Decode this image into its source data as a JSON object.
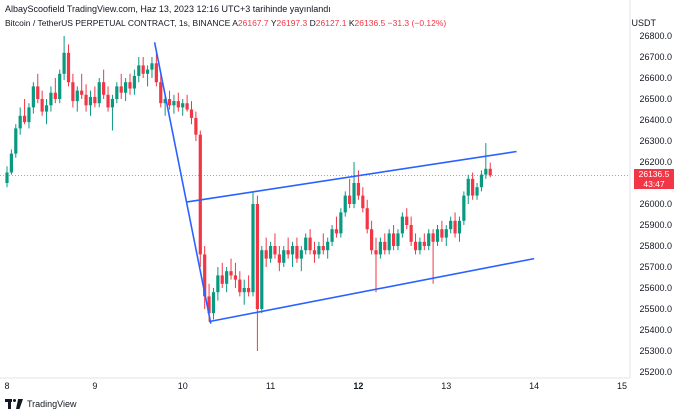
{
  "header": {
    "publisher": "AlbayScoofield TradingView.com, Haz 13, 2023 12:16 UTC+3 tarihinde yayınlandı"
  },
  "symbol": {
    "title": "Bitcoin / TetherUS PERPETUAL CONTRACT, 1s, BINANCE",
    "open_label": "A",
    "open": "26167.7",
    "high_label": "Y",
    "high": "26197.3",
    "low_label": "D",
    "low": "26127.1",
    "close_label": "K",
    "close": "26136.5",
    "change": "−31.3 (−0.12%)"
  },
  "axis": {
    "currency": "USDT",
    "y_ticks": [
      "26800.0",
      "26700.0",
      "26600.0",
      "26500.0",
      "26400.0",
      "26300.0",
      "26200.0",
      "26100.0",
      "26000.0",
      "25900.0",
      "25800.0",
      "25700.0",
      "25600.0",
      "25500.0",
      "25400.0",
      "25300.0",
      "25200.0"
    ],
    "x_ticks": [
      "8",
      "9",
      "10",
      "11",
      "12",
      "13",
      "14",
      "15"
    ]
  },
  "price_label": {
    "price": "26136.5",
    "countdown": "43:47"
  },
  "footer": {
    "brand": "TradingView"
  },
  "colors": {
    "up": "#089981",
    "down": "#f23645",
    "trendline": "#2962ff"
  },
  "chart_data": {
    "type": "candlestick",
    "title": "",
    "ylim": [
      25150,
      26850
    ],
    "x_range": [
      8,
      15
    ],
    "last_price": 26136.5,
    "trendlines": [
      {
        "from": [
          9.68,
          26770
        ],
        "to": [
          10.32,
          25430
        ]
      },
      {
        "from": [
          10.05,
          26010
        ],
        "to": [
          13.8,
          26250
        ]
      },
      {
        "from": [
          10.3,
          25440
        ],
        "to": [
          14.0,
          25740
        ]
      }
    ],
    "candles": [
      {
        "x": 8.0,
        "o": 26100,
        "h": 26180,
        "l": 26080,
        "c": 26150
      },
      {
        "x": 8.05,
        "o": 26150,
        "h": 26260,
        "l": 26140,
        "c": 26240
      },
      {
        "x": 8.1,
        "o": 26240,
        "h": 26380,
        "l": 26220,
        "c": 26360
      },
      {
        "x": 8.15,
        "o": 26360,
        "h": 26460,
        "l": 26330,
        "c": 26420
      },
      {
        "x": 8.2,
        "o": 26420,
        "h": 26500,
        "l": 26380,
        "c": 26390
      },
      {
        "x": 8.25,
        "o": 26390,
        "h": 26480,
        "l": 26360,
        "c": 26460
      },
      {
        "x": 8.3,
        "o": 26460,
        "h": 26580,
        "l": 26430,
        "c": 26560
      },
      {
        "x": 8.35,
        "o": 26560,
        "h": 26620,
        "l": 26480,
        "c": 26500
      },
      {
        "x": 8.4,
        "o": 26500,
        "h": 26540,
        "l": 26420,
        "c": 26440
      },
      {
        "x": 8.45,
        "o": 26440,
        "h": 26500,
        "l": 26380,
        "c": 26470
      },
      {
        "x": 8.5,
        "o": 26470,
        "h": 26560,
        "l": 26440,
        "c": 26530
      },
      {
        "x": 8.55,
        "o": 26530,
        "h": 26600,
        "l": 26480,
        "c": 26500
      },
      {
        "x": 8.6,
        "o": 26500,
        "h": 26640,
        "l": 26480,
        "c": 26620
      },
      {
        "x": 8.65,
        "o": 26620,
        "h": 26800,
        "l": 26590,
        "c": 26720
      },
      {
        "x": 8.7,
        "o": 26720,
        "h": 26760,
        "l": 26560,
        "c": 26580
      },
      {
        "x": 8.75,
        "o": 26580,
        "h": 26620,
        "l": 26460,
        "c": 26490
      },
      {
        "x": 8.8,
        "o": 26490,
        "h": 26560,
        "l": 26440,
        "c": 26540
      },
      {
        "x": 8.85,
        "o": 26540,
        "h": 26620,
        "l": 26500,
        "c": 26520
      },
      {
        "x": 8.9,
        "o": 26520,
        "h": 26570,
        "l": 26440,
        "c": 26470
      },
      {
        "x": 8.95,
        "o": 26470,
        "h": 26540,
        "l": 26420,
        "c": 26510
      },
      {
        "x": 9.0,
        "o": 26510,
        "h": 26560,
        "l": 26460,
        "c": 26480
      },
      {
        "x": 9.05,
        "o": 26480,
        "h": 26600,
        "l": 26460,
        "c": 26580
      },
      {
        "x": 9.1,
        "o": 26580,
        "h": 26640,
        "l": 26500,
        "c": 26520
      },
      {
        "x": 9.15,
        "o": 26520,
        "h": 26560,
        "l": 26440,
        "c": 26460
      },
      {
        "x": 9.2,
        "o": 26460,
        "h": 26520,
        "l": 26350,
        "c": 26500
      },
      {
        "x": 9.25,
        "o": 26500,
        "h": 26580,
        "l": 26480,
        "c": 26560
      },
      {
        "x": 9.3,
        "o": 26560,
        "h": 26620,
        "l": 26500,
        "c": 26530
      },
      {
        "x": 9.35,
        "o": 26530,
        "h": 26600,
        "l": 26490,
        "c": 26580
      },
      {
        "x": 9.4,
        "o": 26580,
        "h": 26620,
        "l": 26520,
        "c": 26550
      },
      {
        "x": 9.45,
        "o": 26550,
        "h": 26640,
        "l": 26520,
        "c": 26610
      },
      {
        "x": 9.5,
        "o": 26610,
        "h": 26700,
        "l": 26580,
        "c": 26660
      },
      {
        "x": 9.55,
        "o": 26660,
        "h": 26700,
        "l": 26600,
        "c": 26620
      },
      {
        "x": 9.6,
        "o": 26620,
        "h": 26660,
        "l": 26560,
        "c": 26640
      },
      {
        "x": 9.65,
        "o": 26640,
        "h": 26700,
        "l": 26600,
        "c": 26670
      },
      {
        "x": 9.7,
        "o": 26670,
        "h": 26720,
        "l": 26560,
        "c": 26580
      },
      {
        "x": 9.75,
        "o": 26580,
        "h": 26620,
        "l": 26460,
        "c": 26480
      },
      {
        "x": 9.8,
        "o": 26480,
        "h": 26520,
        "l": 26420,
        "c": 26500
      },
      {
        "x": 9.85,
        "o": 26500,
        "h": 26540,
        "l": 26450,
        "c": 26470
      },
      {
        "x": 9.9,
        "o": 26470,
        "h": 26520,
        "l": 26430,
        "c": 26490
      },
      {
        "x": 9.95,
        "o": 26490,
        "h": 26530,
        "l": 26440,
        "c": 26460
      },
      {
        "x": 10.0,
        "o": 26460,
        "h": 26500,
        "l": 26420,
        "c": 26480
      },
      {
        "x": 10.05,
        "o": 26480,
        "h": 26520,
        "l": 26440,
        "c": 26450
      },
      {
        "x": 10.1,
        "o": 26450,
        "h": 26490,
        "l": 26380,
        "c": 26410
      },
      {
        "x": 10.15,
        "o": 26410,
        "h": 26440,
        "l": 26300,
        "c": 26330
      },
      {
        "x": 10.2,
        "o": 26330,
        "h": 26350,
        "l": 25700,
        "c": 25760
      },
      {
        "x": 10.25,
        "o": 25760,
        "h": 25800,
        "l": 25500,
        "c": 25560
      },
      {
        "x": 10.3,
        "o": 25560,
        "h": 25620,
        "l": 25440,
        "c": 25480
      },
      {
        "x": 10.35,
        "o": 25480,
        "h": 25600,
        "l": 25450,
        "c": 25580
      },
      {
        "x": 10.4,
        "o": 25580,
        "h": 25700,
        "l": 25540,
        "c": 25660
      },
      {
        "x": 10.45,
        "o": 25660,
        "h": 25720,
        "l": 25600,
        "c": 25620
      },
      {
        "x": 10.5,
        "o": 25620,
        "h": 25700,
        "l": 25580,
        "c": 25680
      },
      {
        "x": 10.55,
        "o": 25680,
        "h": 25740,
        "l": 25640,
        "c": 25660
      },
      {
        "x": 10.6,
        "o": 25660,
        "h": 25720,
        "l": 25600,
        "c": 25640
      },
      {
        "x": 10.65,
        "o": 25640,
        "h": 25680,
        "l": 25560,
        "c": 25580
      },
      {
        "x": 10.7,
        "o": 25580,
        "h": 25640,
        "l": 25520,
        "c": 25600
      },
      {
        "x": 10.75,
        "o": 25600,
        "h": 25660,
        "l": 25560,
        "c": 25580
      },
      {
        "x": 10.8,
        "o": 25580,
        "h": 26060,
        "l": 25560,
        "c": 26000
      },
      {
        "x": 10.85,
        "o": 26000,
        "h": 26040,
        "l": 25300,
        "c": 25500
      },
      {
        "x": 10.9,
        "o": 25500,
        "h": 25800,
        "l": 25480,
        "c": 25780
      },
      {
        "x": 10.95,
        "o": 25780,
        "h": 25840,
        "l": 25700,
        "c": 25740
      },
      {
        "x": 11.0,
        "o": 25740,
        "h": 25820,
        "l": 25720,
        "c": 25800
      },
      {
        "x": 11.05,
        "o": 25800,
        "h": 25860,
        "l": 25740,
        "c": 25760
      },
      {
        "x": 11.1,
        "o": 25760,
        "h": 25800,
        "l": 25680,
        "c": 25720
      },
      {
        "x": 11.15,
        "o": 25720,
        "h": 25800,
        "l": 25700,
        "c": 25780
      },
      {
        "x": 11.2,
        "o": 25780,
        "h": 25840,
        "l": 25740,
        "c": 25760
      },
      {
        "x": 11.25,
        "o": 25760,
        "h": 25820,
        "l": 25700,
        "c": 25800
      },
      {
        "x": 11.3,
        "o": 25800,
        "h": 25840,
        "l": 25720,
        "c": 25740
      },
      {
        "x": 11.35,
        "o": 25740,
        "h": 25800,
        "l": 25680,
        "c": 25780
      },
      {
        "x": 11.4,
        "o": 25780,
        "h": 25860,
        "l": 25760,
        "c": 25840
      },
      {
        "x": 11.45,
        "o": 25840,
        "h": 25880,
        "l": 25760,
        "c": 25780
      },
      {
        "x": 11.5,
        "o": 25780,
        "h": 25820,
        "l": 25720,
        "c": 25760
      },
      {
        "x": 11.55,
        "o": 25760,
        "h": 25820,
        "l": 25740,
        "c": 25800
      },
      {
        "x": 11.6,
        "o": 25800,
        "h": 25860,
        "l": 25760,
        "c": 25780
      },
      {
        "x": 11.65,
        "o": 25780,
        "h": 25840,
        "l": 25740,
        "c": 25820
      },
      {
        "x": 11.7,
        "o": 25820,
        "h": 25900,
        "l": 25800,
        "c": 25880
      },
      {
        "x": 11.75,
        "o": 25880,
        "h": 25940,
        "l": 25840,
        "c": 25860
      },
      {
        "x": 11.8,
        "o": 25860,
        "h": 25980,
        "l": 25840,
        "c": 25960
      },
      {
        "x": 11.85,
        "o": 25960,
        "h": 26060,
        "l": 25940,
        "c": 26040
      },
      {
        "x": 11.9,
        "o": 26040,
        "h": 26120,
        "l": 25980,
        "c": 26000
      },
      {
        "x": 11.95,
        "o": 26000,
        "h": 26200,
        "l": 25980,
        "c": 26100
      },
      {
        "x": 12.0,
        "o": 26100,
        "h": 26160,
        "l": 26020,
        "c": 26040
      },
      {
        "x": 12.05,
        "o": 26040,
        "h": 26080,
        "l": 25960,
        "c": 25980
      },
      {
        "x": 12.1,
        "o": 25980,
        "h": 26020,
        "l": 25860,
        "c": 25880
      },
      {
        "x": 12.15,
        "o": 25880,
        "h": 25920,
        "l": 25760,
        "c": 25780
      },
      {
        "x": 12.2,
        "o": 25780,
        "h": 25840,
        "l": 25580,
        "c": 25760
      },
      {
        "x": 12.25,
        "o": 25760,
        "h": 25840,
        "l": 25740,
        "c": 25820
      },
      {
        "x": 12.3,
        "o": 25820,
        "h": 25860,
        "l": 25760,
        "c": 25780
      },
      {
        "x": 12.35,
        "o": 25780,
        "h": 25880,
        "l": 25760,
        "c": 25860
      },
      {
        "x": 12.4,
        "o": 25860,
        "h": 25900,
        "l": 25780,
        "c": 25800
      },
      {
        "x": 12.45,
        "o": 25800,
        "h": 25880,
        "l": 25780,
        "c": 25860
      },
      {
        "x": 12.5,
        "o": 25860,
        "h": 25960,
        "l": 25840,
        "c": 25940
      },
      {
        "x": 12.55,
        "o": 25940,
        "h": 25980,
        "l": 25880,
        "c": 25900
      },
      {
        "x": 12.6,
        "o": 25900,
        "h": 25940,
        "l": 25800,
        "c": 25820
      },
      {
        "x": 12.65,
        "o": 25820,
        "h": 25860,
        "l": 25760,
        "c": 25780
      },
      {
        "x": 12.7,
        "o": 25780,
        "h": 25840,
        "l": 25760,
        "c": 25820
      },
      {
        "x": 12.75,
        "o": 25820,
        "h": 25860,
        "l": 25780,
        "c": 25800
      },
      {
        "x": 12.8,
        "o": 25800,
        "h": 25880,
        "l": 25780,
        "c": 25860
      },
      {
        "x": 12.85,
        "o": 25860,
        "h": 25880,
        "l": 25620,
        "c": 25820
      },
      {
        "x": 12.9,
        "o": 25820,
        "h": 25900,
        "l": 25800,
        "c": 25880
      },
      {
        "x": 12.95,
        "o": 25880,
        "h": 25920,
        "l": 25820,
        "c": 25840
      },
      {
        "x": 13.0,
        "o": 25840,
        "h": 25900,
        "l": 25800,
        "c": 25880
      },
      {
        "x": 13.05,
        "o": 25880,
        "h": 25940,
        "l": 25860,
        "c": 25920
      },
      {
        "x": 13.1,
        "o": 25920,
        "h": 25960,
        "l": 25840,
        "c": 25860
      },
      {
        "x": 13.15,
        "o": 25860,
        "h": 25940,
        "l": 25820,
        "c": 25920
      },
      {
        "x": 13.2,
        "o": 25920,
        "h": 26060,
        "l": 25900,
        "c": 26040
      },
      {
        "x": 13.25,
        "o": 26040,
        "h": 26140,
        "l": 26000,
        "c": 26120
      },
      {
        "x": 13.3,
        "o": 26120,
        "h": 26150,
        "l": 26020,
        "c": 26040
      },
      {
        "x": 13.35,
        "o": 26040,
        "h": 26100,
        "l": 26020,
        "c": 26080
      },
      {
        "x": 13.4,
        "o": 26080,
        "h": 26160,
        "l": 26060,
        "c": 26140
      },
      {
        "x": 13.45,
        "o": 26140,
        "h": 26290,
        "l": 26120,
        "c": 26167.7
      },
      {
        "x": 13.5,
        "o": 26167.7,
        "h": 26197.3,
        "l": 26127.1,
        "c": 26136.5
      }
    ]
  }
}
